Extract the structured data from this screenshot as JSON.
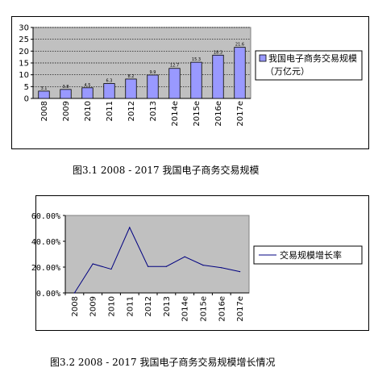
{
  "chart_data": [
    {
      "type": "bar",
      "categories": [
        "2008",
        "2009",
        "2010",
        "2011",
        "2012",
        "2013",
        "2014e",
        "2015e",
        "2016e",
        "2017e"
      ],
      "values": [
        3.1,
        3.8,
        4.5,
        6.3,
        8.2,
        9.9,
        12.7,
        15.3,
        18.3,
        21.6
      ],
      "data_labels": [
        "3.1",
        "3.8",
        "4.5",
        "6.3",
        "8.2",
        "9.9",
        "12.7",
        "15.3",
        "18.3",
        "21.6"
      ],
      "ylim": [
        0,
        30
      ],
      "yticks": [
        0,
        5,
        10,
        15,
        20,
        25,
        30
      ],
      "grid": true,
      "legend_position": "right",
      "series_color": "#9999ff",
      "plot_background": "#c0c0c0",
      "legend": [
        "我国电子商务交易规模",
        "（万亿元）"
      ]
    },
    {
      "type": "line",
      "categories": [
        "2008",
        "2009",
        "2010",
        "2011",
        "2012",
        "2013",
        "2014e",
        "2015e",
        "2016e",
        "2017e"
      ],
      "values": [
        0.0,
        22.5,
        18.4,
        50.7,
        20.5,
        20.5,
        28.0,
        21.5,
        19.5,
        16.5
      ],
      "ylim": [
        0,
        60
      ],
      "yticks": [
        "0.00%",
        "20.00%",
        "40.00%",
        "60.00%"
      ],
      "grid": false,
      "legend_position": "right",
      "line_color": "#000080",
      "plot_background": "#c0c0c0",
      "legend": [
        "交易规模增长率"
      ]
    }
  ],
  "captions": [
    "图3.1 2008 - 2017 我国电子商务交易规模",
    "图3.2 2008 - 2017 我国电子商务交易规模增长情况"
  ]
}
